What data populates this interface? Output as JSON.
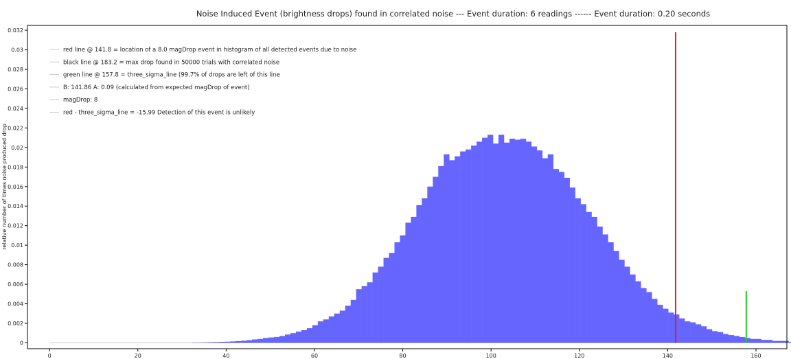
{
  "chart_data": {
    "type": "bar",
    "title": "Noise Induced Event (brightness drops) found in correlated noise --- Event duration: 6 readings ------ Event duration: 0.20 seconds",
    "ylabel": "relative number of times noise produced drop",
    "xlabel": "",
    "xlim": [
      -5,
      167
    ],
    "ylim": [
      -0.0006,
      0.0325
    ],
    "x_ticks": [
      0,
      20,
      40,
      60,
      80,
      100,
      120,
      140,
      160
    ],
    "y_ticks": [
      0,
      0.002,
      0.004,
      0.006,
      0.008,
      0.01,
      0.012,
      0.014,
      0.016,
      0.018,
      0.02,
      0.022,
      0.024,
      0.026,
      0.028,
      0.03,
      0.032
    ],
    "bar_color": "#6666ff",
    "bin_start": 0,
    "bin_width": 1.24,
    "values": [
      0,
      0,
      0,
      0,
      0,
      0,
      0,
      0,
      0,
      0,
      0,
      0,
      0,
      0,
      0,
      0,
      0,
      0,
      0,
      0,
      0,
      0,
      0,
      0,
      0,
      0,
      3e-05,
      3e-05,
      5e-05,
      7e-05,
      8e-05,
      0.0001,
      0.00012,
      0.00015,
      0.00018,
      0.00022,
      0.00028,
      0.00035,
      0.0004,
      0.0005,
      0.00055,
      0.0006,
      0.0007,
      0.00085,
      0.001,
      0.00115,
      0.0013,
      0.0015,
      0.0018,
      0.0022,
      0.0024,
      0.0027,
      0.003,
      0.0033,
      0.0038,
      0.0044,
      0.0055,
      0.0058,
      0.0062,
      0.0072,
      0.0078,
      0.0087,
      0.0092,
      0.0103,
      0.011,
      0.0123,
      0.0129,
      0.0141,
      0.0148,
      0.016,
      0.017,
      0.0181,
      0.0193,
      0.0187,
      0.0191,
      0.0196,
      0.0198,
      0.0202,
      0.0206,
      0.021,
      0.0213,
      0.0204,
      0.0213,
      0.0205,
      0.0209,
      0.0208,
      0.0209,
      0.0206,
      0.0201,
      0.0197,
      0.0189,
      0.0193,
      0.0178,
      0.0175,
      0.0169,
      0.0159,
      0.0148,
      0.0142,
      0.0134,
      0.0129,
      0.0119,
      0.0111,
      0.0103,
      0.0094,
      0.0085,
      0.0078,
      0.007,
      0.0063,
      0.0056,
      0.0052,
      0.0045,
      0.0039,
      0.0035,
      0.0031,
      0.0029,
      0.0025,
      0.0022,
      0.0021,
      0.0019,
      0.0017,
      0.0014,
      0.0012,
      0.0011,
      0.0009,
      0.0008,
      0.0007,
      0.0006,
      0.0005,
      0.0004,
      0.0004,
      0.0003,
      0.0003,
      0.0002,
      0.0002,
      0.0002,
      0.0001
    ],
    "lines": [
      {
        "name": "red line",
        "x": 141.8,
        "y_top": 0.0318,
        "color": "#e02020"
      },
      {
        "name": "green line",
        "x": 157.8,
        "y_top": 0.0053,
        "color": "#22cc22"
      }
    ],
    "legend": {
      "placement": "top-left",
      "entries": [
        "red line @ 141.8 = location of a 8.0 magDrop event in histogram of all detected events due to noise",
        "black line @ 183.2 = max drop found in 50000 trials with correlated noise",
        "green line @ 157.8 = three_sigma_line (99.7% of drops are left of this line",
        "B: 141.86 A: 0.09 (calculated from expected magDrop of event)",
        "magDrop: 8",
        "red - three_sigma_line = -15.99 Detection of this event is unlikely"
      ]
    }
  }
}
